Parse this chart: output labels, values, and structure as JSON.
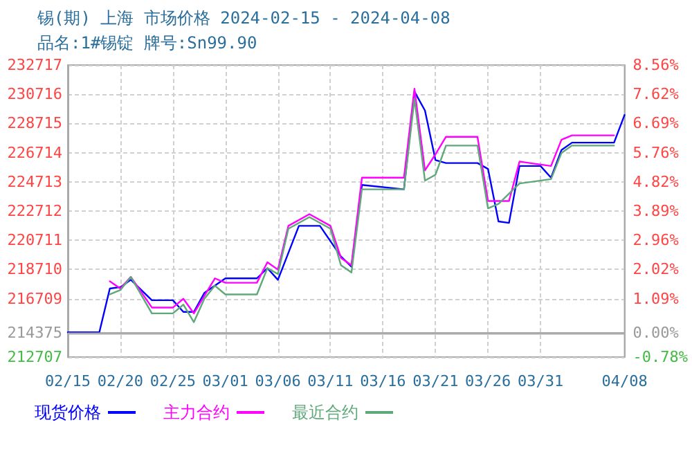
{
  "chart_data": {
    "type": "line",
    "title": "锡(期) 上海 市场价格 2024-02-15 - 2024-04-08",
    "subtitle": "品名:1#锡锭 牌号:Sn99.90",
    "xlim": [
      "2024-02-15",
      "2024-04-08"
    ],
    "xticks": [
      {
        "value": "2024-02-15",
        "label": "02/15"
      },
      {
        "value": "2024-02-20",
        "label": "02/20"
      },
      {
        "value": "2024-02-25",
        "label": "02/25"
      },
      {
        "value": "2024-03-01",
        "label": "03/01"
      },
      {
        "value": "2024-03-06",
        "label": "03/06"
      },
      {
        "value": "2024-03-11",
        "label": "03/11"
      },
      {
        "value": "2024-03-16",
        "label": "03/16"
      },
      {
        "value": "2024-03-21",
        "label": "03/21"
      },
      {
        "value": "2024-03-26",
        "label": "03/26"
      },
      {
        "value": "2024-03-31",
        "label": "03/31"
      },
      {
        "value": "2024-04-08",
        "label": "04/08"
      }
    ],
    "ylim": [
      212707,
      232717
    ],
    "yticks": [
      212707,
      214375,
      216709,
      218710,
      220711,
      222712,
      224713,
      226714,
      228715,
      230716,
      232717
    ],
    "y2lim": [
      -0.78,
      8.56
    ],
    "y2ticks": [
      {
        "value": -0.78,
        "label": "-0.78%"
      },
      {
        "value": 0,
        "label": "0.00%"
      },
      {
        "value": 1.09,
        "label": "1.09%"
      },
      {
        "value": 2.02,
        "label": "2.02%"
      },
      {
        "value": 2.96,
        "label": "2.96%"
      },
      {
        "value": 3.89,
        "label": "3.89%"
      },
      {
        "value": 4.82,
        "label": "4.82%"
      },
      {
        "value": 5.76,
        "label": "5.76%"
      },
      {
        "value": 6.69,
        "label": "6.69%"
      },
      {
        "value": 7.62,
        "label": "7.62%"
      },
      {
        "value": 8.56,
        "label": "8.56%"
      }
    ],
    "ref_lines": [
      {
        "axis": "y",
        "value": 214375,
        "color": "#aaaaaa",
        "line_style": "solid"
      }
    ],
    "grid": true,
    "legend": "bottom left",
    "marker": "none",
    "line_style": "solid",
    "series": [
      {
        "name": "现货价格",
        "color": "#0000ff",
        "x": [
          "2024-02-15",
          "2024-02-18",
          "2024-02-19",
          "2024-02-20",
          "2024-02-21",
          "2024-02-23",
          "2024-02-25",
          "2024-02-26",
          "2024-02-27",
          "2024-02-28",
          "2024-03-01",
          "2024-03-04",
          "2024-03-05",
          "2024-03-06",
          "2024-03-08",
          "2024-03-10",
          "2024-03-12",
          "2024-03-13",
          "2024-03-14",
          "2024-03-18",
          "2024-03-19",
          "2024-03-20",
          "2024-03-21",
          "2024-03-22",
          "2024-03-25",
          "2024-03-26",
          "2024-03-27",
          "2024-03-28",
          "2024-03-29",
          "2024-03-31",
          "2024-04-01",
          "2024-04-02",
          "2024-04-03",
          "2024-04-07",
          "2024-04-08"
        ],
        "values": [
          214400,
          214400,
          217400,
          217500,
          218000,
          216600,
          216600,
          215800,
          215800,
          217100,
          218100,
          218100,
          218800,
          218000,
          221700,
          221700,
          219600,
          218900,
          224500,
          224200,
          230900,
          229600,
          226200,
          226000,
          226000,
          225600,
          222000,
          221900,
          225800,
          225800,
          225000,
          226900,
          227400,
          227400,
          229300
        ]
      },
      {
        "name": "主力合约",
        "color": "#ff00ff",
        "x": [
          "2024-02-19",
          "2024-02-20",
          "2024-02-21",
          "2024-02-23",
          "2024-02-25",
          "2024-02-26",
          "2024-02-27",
          "2024-02-28",
          "2024-02-29",
          "2024-03-01",
          "2024-03-04",
          "2024-03-05",
          "2024-03-06",
          "2024-03-07",
          "2024-03-09",
          "2024-03-11",
          "2024-03-12",
          "2024-03-13",
          "2024-03-14",
          "2024-03-18",
          "2024-03-19",
          "2024-03-20",
          "2024-03-21",
          "2024-03-22",
          "2024-03-25",
          "2024-03-26",
          "2024-03-28",
          "2024-03-29",
          "2024-04-01",
          "2024-04-02",
          "2024-04-03",
          "2024-04-07"
        ],
        "values": [
          217900,
          217400,
          218200,
          216100,
          216100,
          216700,
          215700,
          216900,
          218100,
          217800,
          217800,
          219200,
          218700,
          221700,
          222500,
          221700,
          219500,
          219000,
          225000,
          225000,
          231100,
          225500,
          226600,
          227800,
          227800,
          223400,
          223400,
          226100,
          225800,
          227600,
          227900,
          227900
        ]
      },
      {
        "name": "最近合约",
        "color": "#5fa87a",
        "x": [
          "2024-02-19",
          "2024-02-20",
          "2024-02-21",
          "2024-02-23",
          "2024-02-25",
          "2024-02-26",
          "2024-02-27",
          "2024-02-28",
          "2024-02-29",
          "2024-03-01",
          "2024-03-04",
          "2024-03-05",
          "2024-03-06",
          "2024-03-07",
          "2024-03-09",
          "2024-03-11",
          "2024-03-12",
          "2024-03-13",
          "2024-03-14",
          "2024-03-18",
          "2024-03-19",
          "2024-03-20",
          "2024-03-21",
          "2024-03-22",
          "2024-03-25",
          "2024-03-26",
          "2024-03-27",
          "2024-03-29",
          "2024-04-01",
          "2024-04-02",
          "2024-04-03",
          "2024-04-07"
        ],
        "values": [
          217000,
          217300,
          218200,
          215700,
          215700,
          216300,
          215100,
          216700,
          217600,
          217000,
          217000,
          218800,
          218400,
          221500,
          222300,
          221500,
          219000,
          218500,
          224200,
          224200,
          230400,
          224800,
          225200,
          227200,
          227200,
          222900,
          223200,
          224600,
          224900,
          226700,
          227200,
          227200
        ]
      }
    ]
  }
}
